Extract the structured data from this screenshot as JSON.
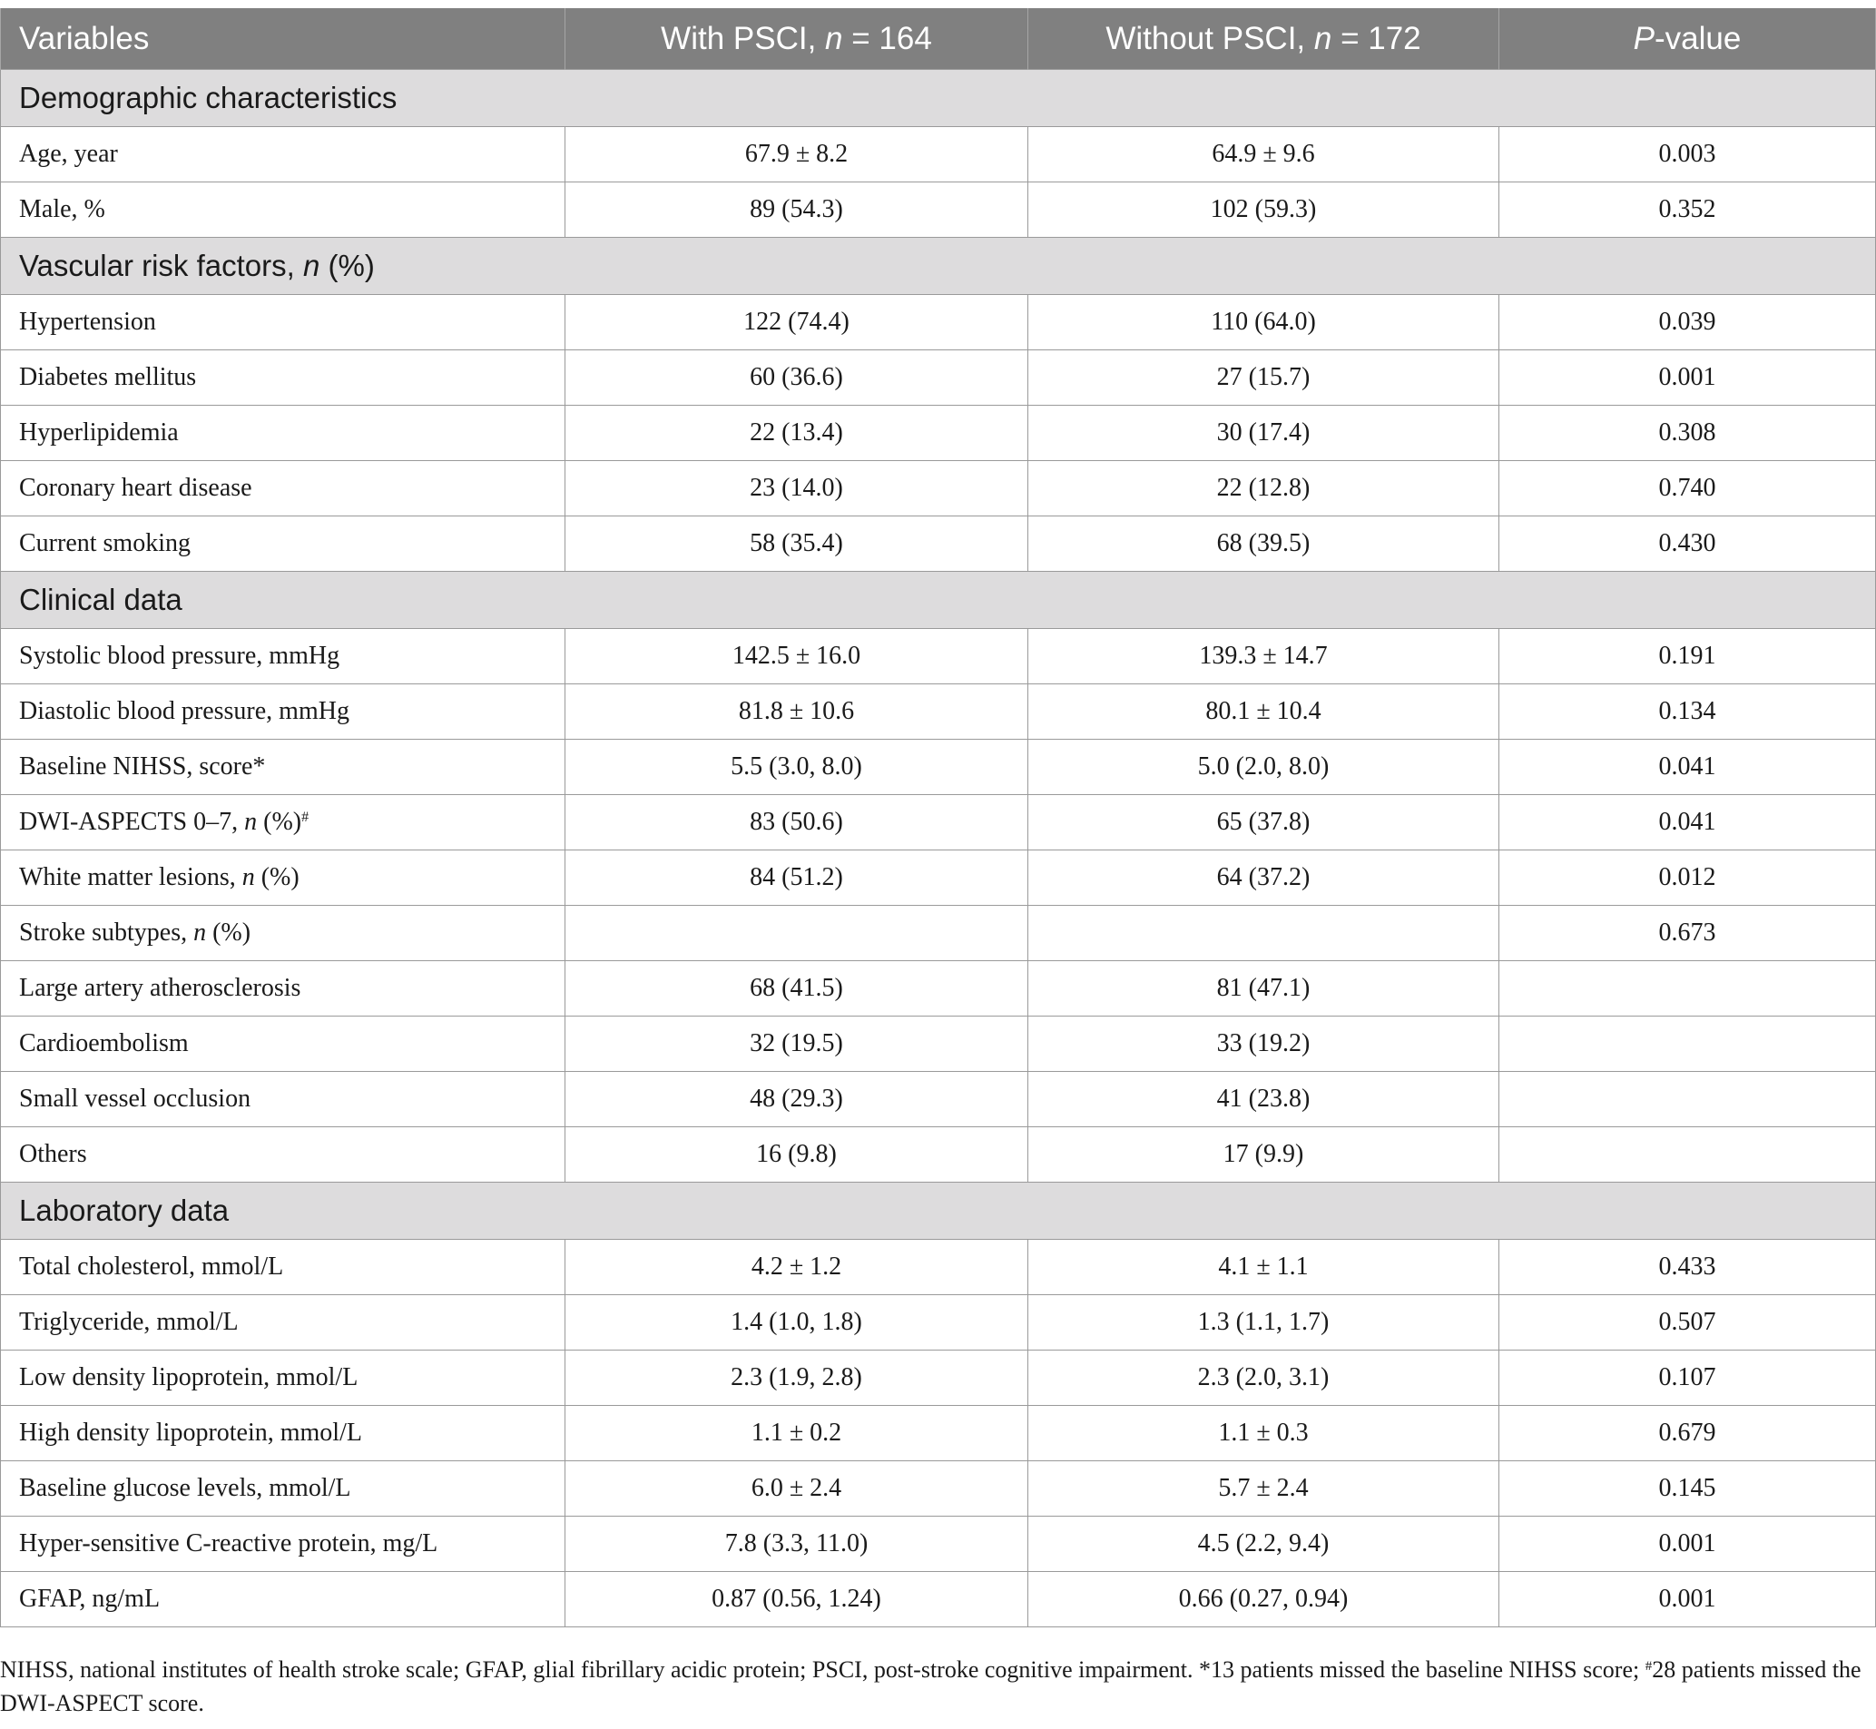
{
  "header": {
    "variables": "Variables",
    "with_psci_prefix": "With PSCI, ",
    "n": "n",
    "with_psci_suffix": " = 164",
    "without_psci_prefix": "Without PSCI, ",
    "without_psci_suffix": " = 172",
    "p": "P",
    "p_suffix": "-value"
  },
  "sections": {
    "demographic": "Demographic characteristics",
    "vascular_prefix": "Vascular risk factors, ",
    "vascular_n": "n",
    "vascular_suffix": " (%)",
    "clinical": "Clinical data",
    "laboratory": "Laboratory data"
  },
  "rows": {
    "age": {
      "label": "Age, year",
      "with": "67.9 ± 8.2",
      "without": "64.9 ± 9.6",
      "p": "0.003"
    },
    "male": {
      "label": "Male, %",
      "with": "89 (54.3)",
      "without": "102 (59.3)",
      "p": "0.352"
    },
    "hypertension": {
      "label": "Hypertension",
      "with": "122 (74.4)",
      "without": "110 (64.0)",
      "p": "0.039"
    },
    "diabetes": {
      "label": "Diabetes mellitus",
      "with": "60 (36.6)",
      "without": "27 (15.7)",
      "p": "0.001"
    },
    "hyperlipidemia": {
      "label": "Hyperlipidemia",
      "with": "22 (13.4)",
      "without": "30 (17.4)",
      "p": "0.308"
    },
    "chd": {
      "label": "Coronary heart disease",
      "with": "23 (14.0)",
      "without": "22 (12.8)",
      "p": "0.740"
    },
    "smoking": {
      "label": "Current smoking",
      "with": "58 (35.4)",
      "without": "68 (39.5)",
      "p": "0.430"
    },
    "sbp": {
      "label": "Systolic blood pressure, mmHg",
      "with": "142.5 ± 16.0",
      "without": "139.3 ± 14.7",
      "p": "0.191"
    },
    "dbp": {
      "label": "Diastolic blood pressure, mmHg",
      "with": "81.8 ± 10.6",
      "without": "80.1 ± 10.4",
      "p": "0.134"
    },
    "nihss": {
      "label": "Baseline NIHSS, score*",
      "with": "5.5 (3.0, 8.0)",
      "without": "5.0 (2.0, 8.0)",
      "p": "0.041"
    },
    "dwi": {
      "label_prefix": "DWI-ASPECTS 0–7, ",
      "label_n": "n",
      "label_suffix": " (%)",
      "label_mark": "#",
      "with": "83 (50.6)",
      "without": "65 (37.8)",
      "p": "0.041"
    },
    "wml": {
      "label_prefix": "White matter lesions, ",
      "label_n": "n",
      "label_suffix": " (%)",
      "with": "84 (51.2)",
      "without": "64 (37.2)",
      "p": "0.012"
    },
    "subtypes": {
      "label_prefix": "Stroke subtypes, ",
      "label_n": "n",
      "label_suffix": " (%)",
      "with": "",
      "without": "",
      "p": "0.673"
    },
    "laa": {
      "label": "Large artery atherosclerosis",
      "with": "68 (41.5)",
      "without": "81 (47.1)",
      "p": ""
    },
    "cardio": {
      "label": "Cardioembolism",
      "with": "32 (19.5)",
      "without": "33 (19.2)",
      "p": ""
    },
    "svo": {
      "label": "Small vessel occlusion",
      "with": "48 (29.3)",
      "without": "41 (23.8)",
      "p": ""
    },
    "others": {
      "label": "Others",
      "with": "16 (9.8)",
      "without": "17 (9.9)",
      "p": ""
    },
    "tc": {
      "label": "Total cholesterol, mmol/L",
      "with": "4.2 ± 1.2",
      "without": "4.1 ± 1.1",
      "p": "0.433"
    },
    "tg": {
      "label": "Triglyceride, mmol/L",
      "with": "1.4 (1.0, 1.8)",
      "without": "1.3 (1.1, 1.7)",
      "p": "0.507"
    },
    "ldl": {
      "label": "Low density lipoprotein, mmol/L",
      "with": "2.3 (1.9, 2.8)",
      "without": "2.3 (2.0, 3.1)",
      "p": "0.107"
    },
    "hdl": {
      "label": "High density lipoprotein, mmol/L",
      "with": "1.1 ± 0.2",
      "without": "1.1 ± 0.3",
      "p": "0.679"
    },
    "glucose": {
      "label": "Baseline glucose levels, mmol/L",
      "with": "6.0 ± 2.4",
      "without": "5.7 ± 2.4",
      "p": "0.145"
    },
    "crp": {
      "label": "Hyper-sensitive C-reactive protein, mg/L",
      "with": "7.8 (3.3, 11.0)",
      "without": "4.5 (2.2, 9.4)",
      "p": "0.001"
    },
    "gfap": {
      "label": "GFAP, ng/mL",
      "with": "0.87 (0.56, 1.24)",
      "without": "0.66 (0.27, 0.94)",
      "p": "0.001"
    }
  },
  "footnote": {
    "text": "NIHSS, national institutes of health stroke scale; GFAP, glial fibrillary acidic protein; PSCI, post-stroke cognitive impairment. *13 patients missed the baseline NIHSS score; ",
    "mark": "#",
    "text2": "28 patients missed the DWI-ASPECT score."
  }
}
